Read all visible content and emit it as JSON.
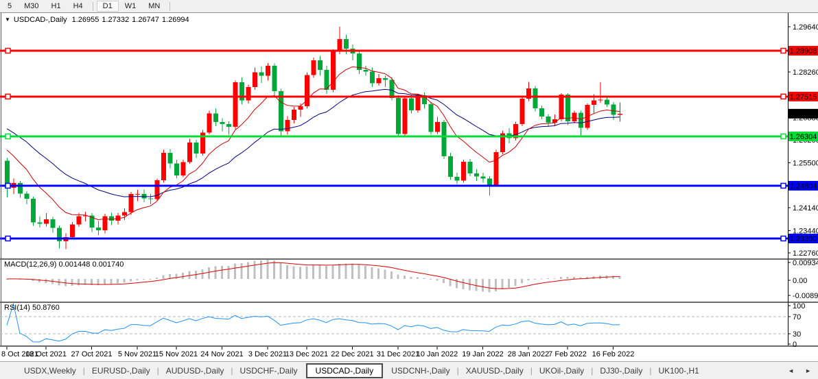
{
  "toolbar": {
    "timeframe_groups": [
      [
        {
          "label": "5",
          "selected": false
        },
        {
          "label": "M30",
          "selected": false
        },
        {
          "label": "H1",
          "selected": false
        },
        {
          "label": "H4",
          "selected": false
        }
      ],
      [
        {
          "label": "D1",
          "selected": true
        },
        {
          "label": "W1",
          "selected": false
        },
        {
          "label": "MN",
          "selected": false
        }
      ]
    ]
  },
  "chart": {
    "title_arrow": "▼",
    "symbol": "USDCAD-,Daily",
    "ohlc": {
      "open": "1.26955",
      "high": "1.27332",
      "low": "1.26747",
      "close": "1.26994"
    }
  },
  "macd_panel": {
    "name": "MACD(12,26,9)",
    "value": "0.001448",
    "signal_value": "0.001740",
    "axis_labels": [
      "0.009345",
      "0.00",
      "-0.008902"
    ]
  },
  "rsi_panel": {
    "name": "RSI(14)",
    "value": "50.8760",
    "axis_labels": [
      "100",
      "70",
      "30",
      "0"
    ],
    "level_lines": [
      70,
      30
    ]
  },
  "chart_data": {
    "type": "candlestick",
    "symbol": "USDCAD",
    "timeframe": "Daily",
    "colors": {
      "bull": "#ff0000",
      "bear": "#00a83a",
      "ma_fast": "#cc0000",
      "ma_slow": "#000080",
      "macd_bar": "#c0c0c0",
      "macd_signal": "#dd0000",
      "rsi_line": "#1e90ff",
      "level_dash": "#b4b4b4"
    },
    "price_axis_ticks": [
      {
        "label": "1.29640",
        "value": 1.2964
      },
      {
        "label": "1.28260",
        "value": 1.2826
      },
      {
        "label": "1.26880",
        "value": 1.2688
      },
      {
        "label": "1.26200",
        "value": 1.262
      },
      {
        "label": "1.25500",
        "value": 1.255
      },
      {
        "label": "1.24140",
        "value": 1.2414
      },
      {
        "label": "1.23440",
        "value": 1.2344
      },
      {
        "label": "1.22760",
        "value": 1.2276
      }
    ],
    "levels": [
      {
        "label": "1.28908",
        "value": 1.28908,
        "color": "#ff0000",
        "text_color": "#ffffff"
      },
      {
        "label": "1.27515",
        "value": 1.27515,
        "color": "#ff0000",
        "text_color": "#ffffff"
      },
      {
        "label": "1.26304",
        "value": 1.26304,
        "color": "#00dd33",
        "text_color": "#cc0000"
      },
      {
        "label": "1.24804",
        "value": 1.24804,
        "color": "#0000ff",
        "text_color": "#ffffff"
      },
      {
        "label": "1.23200",
        "value": 1.232,
        "color": "#0000ff",
        "text_color": "#ffffff"
      }
    ],
    "current_price": {
      "label": "1.26994",
      "value": 1.26994,
      "bg": "#000000",
      "text_color": "#ffffff"
    },
    "ma": {
      "fast": {
        "period": 10,
        "seed": 1.2615
      },
      "slow": {
        "period": 26,
        "seed": 1.2668
      }
    },
    "x_axis_ticks": [
      {
        "bar": 0,
        "label": "8 Oct 2021"
      },
      {
        "bar": 6,
        "label": "18 Oct 2021"
      },
      {
        "bar": 13,
        "label": "27 Oct 2021"
      },
      {
        "bar": 20,
        "label": "5 Nov 2021"
      },
      {
        "bar": 26,
        "label": "15 Nov 2021"
      },
      {
        "bar": 33,
        "label": "24 Nov 2021"
      },
      {
        "bar": 40,
        "label": "3 Dec 2021"
      },
      {
        "bar": 46,
        "label": "13 Dec 2021"
      },
      {
        "bar": 53,
        "label": "22 Dec 2021"
      },
      {
        "bar": 60,
        "label": "31 Dec 2021"
      },
      {
        "bar": 66,
        "label": "10 Jan 2022"
      },
      {
        "bar": 73,
        "label": "19 Jan 2022"
      },
      {
        "bar": 80,
        "label": "28 Jan 2022"
      },
      {
        "bar": 86,
        "label": "7 Feb 2022"
      },
      {
        "bar": 93,
        "label": "16 Feb 2022"
      }
    ],
    "candles_ohlc": [
      [
        1.2556,
        1.2565,
        1.2445,
        1.2474
      ],
      [
        1.2474,
        1.2502,
        1.2455,
        1.2489
      ],
      [
        1.2489,
        1.2495,
        1.2444,
        1.2456
      ],
      [
        1.2456,
        1.2464,
        1.2424,
        1.2441
      ],
      [
        1.2441,
        1.2447,
        1.2358,
        1.2369
      ],
      [
        1.2369,
        1.2388,
        1.2353,
        1.2365
      ],
      [
        1.2365,
        1.2397,
        1.2356,
        1.2378
      ],
      [
        1.2378,
        1.2386,
        1.2338,
        1.2352
      ],
      [
        1.2352,
        1.236,
        1.229,
        1.2312
      ],
      [
        1.2312,
        1.2336,
        1.2288,
        1.2324
      ],
      [
        1.2324,
        1.237,
        1.2317,
        1.2363
      ],
      [
        1.2363,
        1.2398,
        1.2355,
        1.2388
      ],
      [
        1.2388,
        1.2401,
        1.2372,
        1.239
      ],
      [
        1.239,
        1.2397,
        1.234,
        1.2353
      ],
      [
        1.2353,
        1.2373,
        1.233,
        1.2345
      ],
      [
        1.2345,
        1.2395,
        1.2336,
        1.2388
      ],
      [
        1.2388,
        1.2398,
        1.2361,
        1.2374
      ],
      [
        1.2374,
        1.2398,
        1.2363,
        1.239
      ],
      [
        1.239,
        1.2412,
        1.2376,
        1.24
      ],
      [
        1.24,
        1.2462,
        1.2392,
        1.2455
      ],
      [
        1.2455,
        1.2468,
        1.2433,
        1.2455
      ],
      [
        1.2455,
        1.2469,
        1.243,
        1.2442
      ],
      [
        1.2442,
        1.2455,
        1.2424,
        1.244
      ],
      [
        1.244,
        1.2502,
        1.2433,
        1.2497
      ],
      [
        1.2497,
        1.259,
        1.249,
        1.258
      ],
      [
        1.258,
        1.2592,
        1.2533,
        1.2548
      ],
      [
        1.2548,
        1.256,
        1.2503,
        1.2512
      ],
      [
        1.2512,
        1.256,
        1.2506,
        1.2552
      ],
      [
        1.2552,
        1.2623,
        1.2547,
        1.2612
      ],
      [
        1.2612,
        1.262,
        1.2565,
        1.2578
      ],
      [
        1.2578,
        1.265,
        1.2572,
        1.2642
      ],
      [
        1.2642,
        1.2708,
        1.2637,
        1.27
      ],
      [
        1.27,
        1.2715,
        1.2662,
        1.2674
      ],
      [
        1.2674,
        1.2686,
        1.2646,
        1.2668
      ],
      [
        1.2668,
        1.2676,
        1.2636,
        1.266
      ],
      [
        1.266,
        1.28,
        1.2652,
        1.2795
      ],
      [
        1.2795,
        1.281,
        1.2727,
        1.274
      ],
      [
        1.274,
        1.2788,
        1.273,
        1.278
      ],
      [
        1.278,
        1.284,
        1.2772,
        1.2825
      ],
      [
        1.2825,
        1.2843,
        1.2793,
        1.2815
      ],
      [
        1.2815,
        1.2853,
        1.28,
        1.2845
      ],
      [
        1.2845,
        1.2852,
        1.2752,
        1.2768
      ],
      [
        1.2768,
        1.2775,
        1.2632,
        1.2646
      ],
      [
        1.2646,
        1.2692,
        1.2636,
        1.268
      ],
      [
        1.268,
        1.272,
        1.267,
        1.2712
      ],
      [
        1.2712,
        1.273,
        1.269,
        1.2722
      ],
      [
        1.2722,
        1.2825,
        1.2715,
        1.2817
      ],
      [
        1.2817,
        1.287,
        1.2808,
        1.2862
      ],
      [
        1.2862,
        1.2875,
        1.2815,
        1.2832
      ],
      [
        1.2832,
        1.2845,
        1.276,
        1.2772
      ],
      [
        1.2772,
        1.2895,
        1.2765,
        1.2888
      ],
      [
        1.2888,
        1.2964,
        1.288,
        1.2926
      ],
      [
        1.2926,
        1.294,
        1.288,
        1.2897
      ],
      [
        1.2897,
        1.291,
        1.2862,
        1.2882
      ],
      [
        1.2882,
        1.289,
        1.282,
        1.2832
      ],
      [
        1.2832,
        1.2845,
        1.2815,
        1.2827
      ],
      [
        1.2827,
        1.284,
        1.278,
        1.2792
      ],
      [
        1.2792,
        1.282,
        1.2785,
        1.2807
      ],
      [
        1.2807,
        1.2815,
        1.278,
        1.2802
      ],
      [
        1.2802,
        1.281,
        1.274,
        1.2747
      ],
      [
        1.2747,
        1.2755,
        1.2628,
        1.2638
      ],
      [
        1.2638,
        1.275,
        1.2633,
        1.2746
      ],
      [
        1.2746,
        1.2756,
        1.27,
        1.271
      ],
      [
        1.271,
        1.276,
        1.2702,
        1.2755
      ],
      [
        1.2755,
        1.2764,
        1.2715,
        1.2728
      ],
      [
        1.2728,
        1.2736,
        1.2636,
        1.2644
      ],
      [
        1.2644,
        1.269,
        1.2638,
        1.2674
      ],
      [
        1.2674,
        1.268,
        1.2562,
        1.257
      ],
      [
        1.257,
        1.258,
        1.2498,
        1.2507
      ],
      [
        1.2507,
        1.252,
        1.2486,
        1.2496
      ],
      [
        1.2496,
        1.256,
        1.249,
        1.2553
      ],
      [
        1.2553,
        1.2562,
        1.251,
        1.2518
      ],
      [
        1.2518,
        1.253,
        1.2495,
        1.2508
      ],
      [
        1.2508,
        1.252,
        1.249,
        1.2502
      ],
      [
        1.2502,
        1.251,
        1.245,
        1.2482
      ],
      [
        1.2482,
        1.259,
        1.2478,
        1.2582
      ],
      [
        1.2582,
        1.2648,
        1.2576,
        1.264
      ],
      [
        1.264,
        1.2655,
        1.261,
        1.2625
      ],
      [
        1.2625,
        1.2675,
        1.2618,
        1.2668
      ],
      [
        1.2668,
        1.275,
        1.2662,
        1.2745
      ],
      [
        1.2745,
        1.2796,
        1.2738,
        1.2776
      ],
      [
        1.2776,
        1.2784,
        1.2706,
        1.2716
      ],
      [
        1.2716,
        1.2724,
        1.2682,
        1.2691
      ],
      [
        1.2691,
        1.2698,
        1.266,
        1.2672
      ],
      [
        1.2672,
        1.2697,
        1.2662,
        1.2682
      ],
      [
        1.2682,
        1.2762,
        1.2676,
        1.2757
      ],
      [
        1.2757,
        1.2762,
        1.2665,
        1.2676
      ],
      [
        1.2676,
        1.2708,
        1.267,
        1.2702
      ],
      [
        1.2702,
        1.2708,
        1.2632,
        1.2656
      ],
      [
        1.2656,
        1.273,
        1.265,
        1.2726
      ],
      [
        1.2726,
        1.2758,
        1.27,
        1.274
      ],
      [
        1.274,
        1.2795,
        1.2732,
        1.2742
      ],
      [
        1.2742,
        1.275,
        1.272,
        1.2727
      ],
      [
        1.2727,
        1.2735,
        1.268,
        1.2696
      ],
      [
        1.26955,
        1.27332,
        1.26747,
        1.26994
      ]
    ]
  },
  "tabbar": {
    "tabs": [
      {
        "label": "USDX,Weekly",
        "selected": false
      },
      {
        "label": "EURUSD-,Daily",
        "selected": false
      },
      {
        "label": "AUDUSD-,Daily",
        "selected": false
      },
      {
        "label": "USDCHF-,Daily",
        "selected": false
      },
      {
        "label": "USDCAD-,Daily",
        "selected": true
      },
      {
        "label": "USDCNH-,Daily",
        "selected": false
      },
      {
        "label": "XAUUSD-,Daily",
        "selected": false
      },
      {
        "label": "UKOil-,Daily",
        "selected": false
      },
      {
        "label": "DJ30-,Daily",
        "selected": false
      },
      {
        "label": "UK100-,H1",
        "selected": false
      }
    ],
    "nav": {
      "left": "◄",
      "right": "►"
    }
  }
}
